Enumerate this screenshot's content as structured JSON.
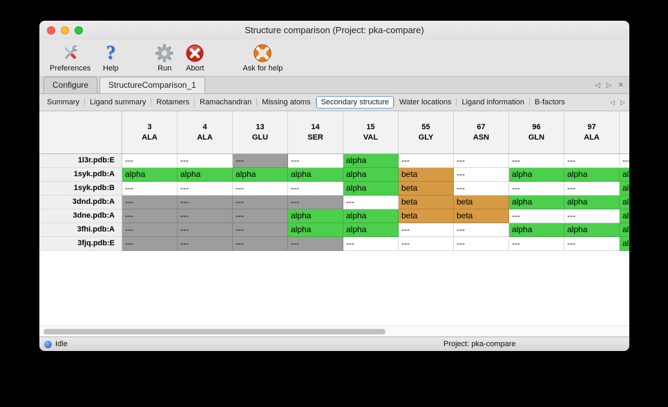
{
  "window": {
    "title": "Structure comparison (Project: pka-compare)",
    "traffic_lights": {
      "close": "#ff5f57",
      "minimize": "#febc2e",
      "zoom": "#28c840"
    }
  },
  "toolbar": {
    "items": [
      {
        "label": "Preferences",
        "icon": "preferences-tools-icon"
      },
      {
        "label": "Help",
        "icon": "help-question-icon"
      },
      {
        "label": "Run",
        "icon": "run-gear-icon"
      },
      {
        "label": "Abort",
        "icon": "abort-cross-icon"
      },
      {
        "label": "Ask for help",
        "icon": "ask-for-help-lifebuoy-icon"
      }
    ]
  },
  "main_tabs": {
    "items": [
      {
        "label": "Configure",
        "active": false
      },
      {
        "label": "StructureComparison_1",
        "active": true
      }
    ],
    "nav": {
      "left": "◁",
      "right": "▷",
      "close": "✕"
    }
  },
  "sub_tabs": {
    "items": [
      {
        "label": "Summary",
        "active": false
      },
      {
        "label": "Ligand summary",
        "active": false
      },
      {
        "label": "Rotamers",
        "active": false
      },
      {
        "label": "Ramachandran",
        "active": false
      },
      {
        "label": "Missing atoms",
        "active": false
      },
      {
        "label": "Secondary structure",
        "active": true
      },
      {
        "label": "Water locations",
        "active": false
      },
      {
        "label": "Ligand information",
        "active": false
      },
      {
        "label": "B-factors",
        "active": false
      }
    ],
    "nav": {
      "left": "◁",
      "right": "▷"
    }
  },
  "table": {
    "columns": [
      {
        "number": "3",
        "residue": "ALA"
      },
      {
        "number": "4",
        "residue": "ALA"
      },
      {
        "number": "13",
        "residue": "GLU"
      },
      {
        "number": "14",
        "residue": "SER"
      },
      {
        "number": "15",
        "residue": "VAL"
      },
      {
        "number": "55",
        "residue": "GLY"
      },
      {
        "number": "67",
        "residue": "ASN"
      },
      {
        "number": "96",
        "residue": "GLN"
      },
      {
        "number": "97",
        "residue": "ALA"
      },
      {
        "number": "",
        "residue": ""
      }
    ],
    "rows": [
      {
        "label": "1l3r.pdb:E",
        "cells": [
          {
            "text": "---",
            "type": "empty"
          },
          {
            "text": "---",
            "type": "empty"
          },
          {
            "text": "---",
            "type": "masked"
          },
          {
            "text": "---",
            "type": "empty"
          },
          {
            "text": "alpha",
            "type": "alpha"
          },
          {
            "text": "---",
            "type": "empty"
          },
          {
            "text": "---",
            "type": "empty"
          },
          {
            "text": "---",
            "type": "empty"
          },
          {
            "text": "---",
            "type": "empty"
          },
          {
            "text": "---",
            "type": "empty"
          }
        ]
      },
      {
        "label": "1syk.pdb:A",
        "cells": [
          {
            "text": "alpha",
            "type": "alpha"
          },
          {
            "text": "alpha",
            "type": "alpha"
          },
          {
            "text": "alpha",
            "type": "alpha"
          },
          {
            "text": "alpha",
            "type": "alpha"
          },
          {
            "text": "alpha",
            "type": "alpha"
          },
          {
            "text": "beta",
            "type": "beta"
          },
          {
            "text": "---",
            "type": "empty"
          },
          {
            "text": "alpha",
            "type": "alpha"
          },
          {
            "text": "alpha",
            "type": "alpha"
          },
          {
            "text": "alpha",
            "type": "alpha"
          }
        ]
      },
      {
        "label": "1syk.pdb:B",
        "cells": [
          {
            "text": "---",
            "type": "empty"
          },
          {
            "text": "---",
            "type": "empty"
          },
          {
            "text": "---",
            "type": "empty"
          },
          {
            "text": "---",
            "type": "empty"
          },
          {
            "text": "alpha",
            "type": "alpha"
          },
          {
            "text": "beta",
            "type": "beta"
          },
          {
            "text": "---",
            "type": "empty"
          },
          {
            "text": "---",
            "type": "empty"
          },
          {
            "text": "---",
            "type": "empty"
          },
          {
            "text": "alpha",
            "type": "alpha"
          }
        ]
      },
      {
        "label": "3dnd.pdb:A",
        "cells": [
          {
            "text": "---",
            "type": "masked"
          },
          {
            "text": "---",
            "type": "masked"
          },
          {
            "text": "---",
            "type": "masked"
          },
          {
            "text": "---",
            "type": "masked"
          },
          {
            "text": "---",
            "type": "empty"
          },
          {
            "text": "beta",
            "type": "beta"
          },
          {
            "text": "beta",
            "type": "beta"
          },
          {
            "text": "alpha",
            "type": "alpha"
          },
          {
            "text": "alpha",
            "type": "alpha"
          },
          {
            "text": "alpha",
            "type": "alpha"
          }
        ]
      },
      {
        "label": "3dne.pdb:A",
        "cells": [
          {
            "text": "---",
            "type": "masked"
          },
          {
            "text": "---",
            "type": "masked"
          },
          {
            "text": "---",
            "type": "masked"
          },
          {
            "text": "alpha",
            "type": "alpha"
          },
          {
            "text": "alpha",
            "type": "alpha"
          },
          {
            "text": "beta",
            "type": "beta"
          },
          {
            "text": "beta",
            "type": "beta"
          },
          {
            "text": "---",
            "type": "empty"
          },
          {
            "text": "---",
            "type": "empty"
          },
          {
            "text": "alpha",
            "type": "alpha"
          }
        ]
      },
      {
        "label": "3fhi.pdb:A",
        "cells": [
          {
            "text": "---",
            "type": "masked"
          },
          {
            "text": "---",
            "type": "masked"
          },
          {
            "text": "---",
            "type": "masked"
          },
          {
            "text": "alpha",
            "type": "alpha"
          },
          {
            "text": "alpha",
            "type": "alpha"
          },
          {
            "text": "---",
            "type": "empty"
          },
          {
            "text": "---",
            "type": "empty"
          },
          {
            "text": "alpha",
            "type": "alpha"
          },
          {
            "text": "alpha",
            "type": "alpha"
          },
          {
            "text": "alpha",
            "type": "alpha"
          }
        ]
      },
      {
        "label": "3fjq.pdb:E",
        "cells": [
          {
            "text": "---",
            "type": "masked"
          },
          {
            "text": "---",
            "type": "masked"
          },
          {
            "text": "---",
            "type": "masked"
          },
          {
            "text": "---",
            "type": "masked"
          },
          {
            "text": "---",
            "type": "empty"
          },
          {
            "text": "---",
            "type": "empty"
          },
          {
            "text": "---",
            "type": "empty"
          },
          {
            "text": "---",
            "type": "empty"
          },
          {
            "text": "---",
            "type": "empty"
          },
          {
            "text": "alpha",
            "type": "alpha"
          }
        ]
      }
    ]
  },
  "statusbar": {
    "status": "Idle",
    "project": "Project: pka-compare"
  },
  "scrollbar": {
    "thumb_percent": 58
  },
  "colors": {
    "alpha": "#4ccf4c",
    "beta": "#d69a45",
    "masked": "#9d9d9d",
    "status_dot": "#1659c9"
  }
}
